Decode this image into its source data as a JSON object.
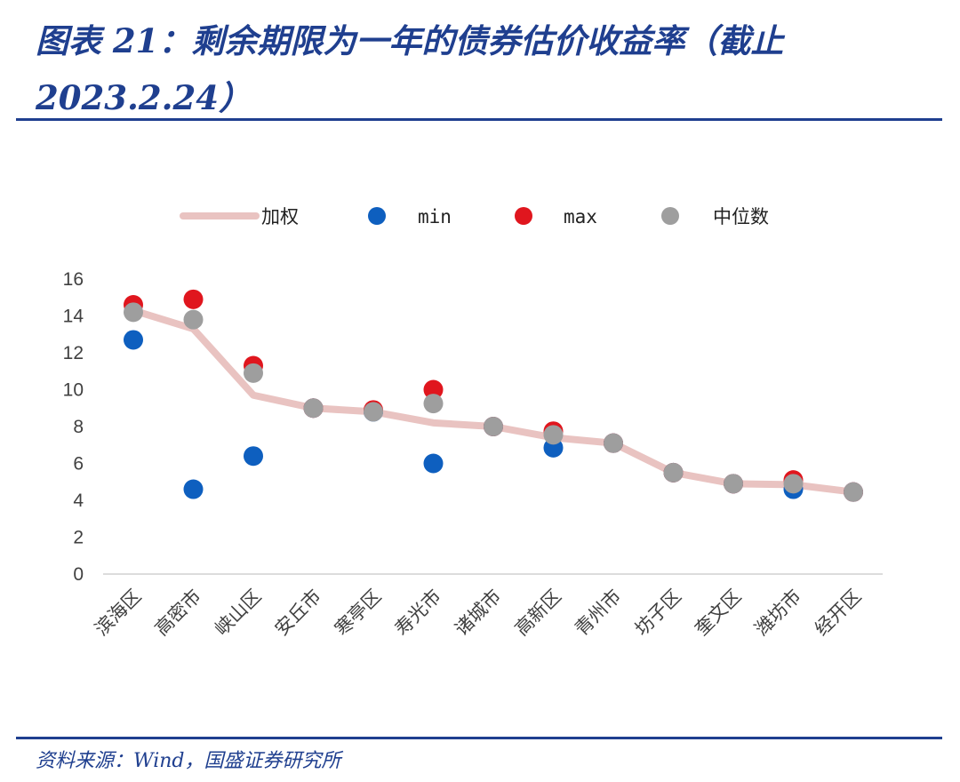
{
  "header": {
    "title": "图表 21：剩余期限为一年的债券估价收益率（截止 2023.2.24）"
  },
  "footer": {
    "source": "资料来源：Wind，国盛证券研究所"
  },
  "colors": {
    "accent": "#1f3f8f",
    "weighted": "#e9c3c1",
    "min": "#0e5fbf",
    "max": "#e0161e",
    "median": "#9e9e9e"
  },
  "chart_data": {
    "type": "line",
    "categories": [
      "滨海区",
      "高密市",
      "峡山区",
      "安丘市",
      "寒亭区",
      "寿光市",
      "诸城市",
      "高新区",
      "青州市",
      "坊子区",
      "奎文区",
      "潍坊市",
      "经开区"
    ],
    "series": [
      {
        "name": "加权",
        "type": "line",
        "values": [
          14.3,
          13.3,
          9.7,
          9.0,
          8.8,
          8.2,
          8.0,
          7.4,
          7.1,
          5.5,
          4.9,
          4.85,
          4.45
        ]
      },
      {
        "name": "min",
        "type": "scatter",
        "values": [
          12.7,
          4.6,
          6.4,
          9.0,
          8.8,
          6.0,
          8.0,
          6.85,
          7.1,
          5.5,
          4.9,
          4.6,
          4.45
        ]
      },
      {
        "name": "max",
        "type": "scatter",
        "values": [
          14.6,
          14.9,
          11.3,
          9.0,
          8.9,
          10.0,
          8.0,
          7.75,
          7.1,
          5.5,
          4.9,
          5.1,
          4.45
        ]
      },
      {
        "name": "中位数",
        "type": "scatter",
        "values": [
          14.2,
          13.8,
          10.9,
          9.0,
          8.8,
          9.25,
          8.0,
          7.55,
          7.1,
          5.5,
          4.9,
          4.9,
          4.45
        ]
      }
    ],
    "ylim": [
      0,
      16
    ],
    "yticks": [
      0,
      2,
      4,
      6,
      8,
      10,
      12,
      14,
      16
    ],
    "legend_position": "top-center",
    "grid": false
  }
}
